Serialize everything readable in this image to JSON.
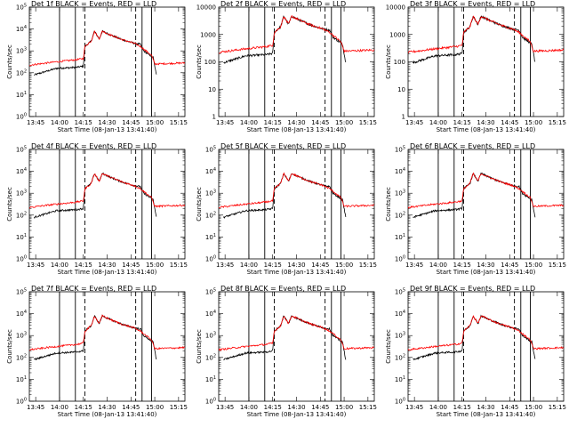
{
  "figure": {
    "panels": [
      {
        "title": "Det 1f  BLACK = Events, RED = LLD",
        "ylim_exp": [
          0,
          5
        ],
        "show_ylabel": true,
        "xlabel": "Start Time (08-Jan-13 13:41:40)"
      },
      {
        "title": "Det 2f  BLACK = Events, RED = LLD",
        "ylim_exp": [
          0,
          4
        ],
        "show_ylabel": true,
        "xlabel": "Start Time (08-Jan-13 13:41:40)"
      },
      {
        "title": "Det 3f  BLACK = Events, RED = LLD",
        "ylim_exp": [
          0,
          4
        ],
        "show_ylabel": true,
        "xlabel": "Start Time (08-Jan-13 13:41:40)"
      },
      {
        "title": "Det 4f  BLACK = Events, RED = LLD",
        "ylim_exp": [
          0,
          5
        ],
        "show_ylabel": true,
        "xlabel": "Start Time (08-Jan-13 13:41:40)"
      },
      {
        "title": "Det 5f  BLACK = Events, RED = LLD",
        "ylim_exp": [
          0,
          5
        ],
        "show_ylabel": true,
        "xlabel": "Start Time (08-Jan-13 13:41:40)"
      },
      {
        "title": "Det 6f  BLACK = Events, RED = LLD",
        "ylim_exp": [
          0,
          5
        ],
        "show_ylabel": true,
        "xlabel": "Start Time (08-Jan-13 13:41:40)"
      },
      {
        "title": "Det 7f  BLACK = Events, RED = LLD",
        "ylim_exp": [
          0,
          5
        ],
        "show_ylabel": true,
        "xlabel": "Start Time (08-Jan-13 13:41:40)"
      },
      {
        "title": "Det 8f  BLACK = Events, RED = LLD",
        "ylim_exp": [
          0,
          5
        ],
        "show_ylabel": true,
        "xlabel": "Start Time (08-Jan-13 13:41:40)"
      },
      {
        "title": "Det 9f  BLACK = Events, RED = LLD",
        "ylim_exp": [
          0,
          5
        ],
        "show_ylabel": true,
        "xlabel": "Start Time (08-Jan-13 13:41:40)"
      }
    ]
  },
  "chart_data": {
    "type": "line",
    "ylabel": "Counts/sec",
    "yscale": "log",
    "x_tick_labels": [
      "13:45",
      "14:00",
      "14:15",
      "14:30",
      "14:45",
      "15:00",
      "15:15"
    ],
    "x_minutes_from_1345": [
      0,
      15,
      30,
      45,
      60,
      75,
      90
    ],
    "xlim_minutes_from_1345": [
      -4,
      94
    ],
    "colors": {
      "events": "#000000",
      "lld": "#ff0000"
    },
    "vertical_lines": {
      "solid_minutes_from_1345": [
        15,
        25,
        67,
        73
      ],
      "dashed_minutes_from_1345": [
        31,
        63
      ]
    },
    "series_profiles": {
      "lld": {
        "x": [
          -4,
          13,
          20,
          26,
          30,
          31,
          35,
          37,
          40,
          42,
          48,
          55,
          62,
          66,
          73,
          75,
          94
        ],
        "log_y": [
          2.35,
          2.5,
          2.55,
          2.6,
          2.65,
          3.2,
          3.45,
          3.9,
          3.55,
          3.9,
          3.7,
          3.5,
          3.35,
          3.2,
          2.8,
          2.4,
          2.45
        ]
      },
      "events": {
        "x": [
          -1,
          13,
          26,
          30,
          31,
          35,
          37,
          40,
          42,
          48,
          55,
          62,
          66,
          68,
          74,
          76
        ],
        "log_y": [
          1.9,
          2.2,
          2.25,
          2.3,
          3.2,
          3.45,
          3.9,
          3.55,
          3.9,
          3.7,
          3.5,
          3.35,
          3.3,
          3.0,
          2.7,
          1.9
        ]
      }
    }
  }
}
